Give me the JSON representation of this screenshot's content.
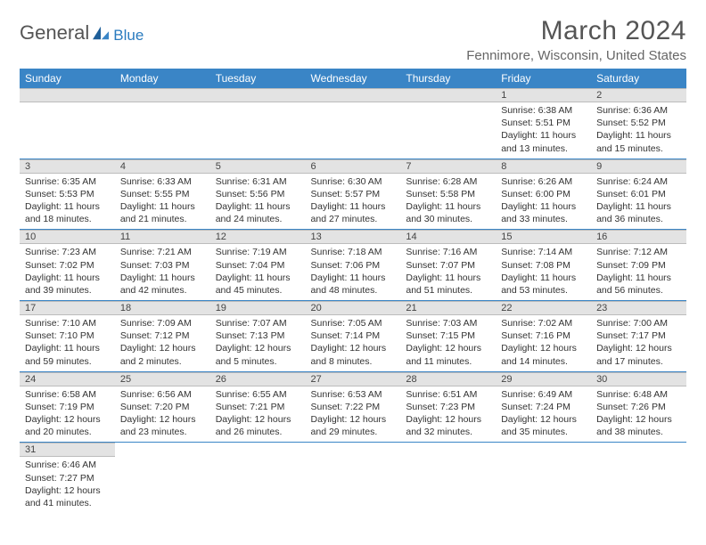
{
  "brand": {
    "part1": "General",
    "part2": "Blue"
  },
  "title": "March 2024",
  "location": "Fennimore, Wisconsin, United States",
  "colors": {
    "header_bg": "#3a85c6",
    "header_text": "#ffffff",
    "daynum_bg": "#e3e3e3",
    "daynum_border": "#bcbcbc",
    "row_divider": "#3a85c6",
    "title_color": "#555555",
    "location_color": "#666666",
    "body_text": "#333333",
    "logo_blue": "#2a7bbf"
  },
  "weekdays": [
    "Sunday",
    "Monday",
    "Tuesday",
    "Wednesday",
    "Thursday",
    "Friday",
    "Saturday"
  ],
  "rows": [
    [
      null,
      null,
      null,
      null,
      null,
      {
        "n": "1",
        "sunrise": "6:38 AM",
        "sunset": "5:51 PM",
        "dl1": "11 hours",
        "dl2": "and 13 minutes."
      },
      {
        "n": "2",
        "sunrise": "6:36 AM",
        "sunset": "5:52 PM",
        "dl1": "11 hours",
        "dl2": "and 15 minutes."
      }
    ],
    [
      {
        "n": "3",
        "sunrise": "6:35 AM",
        "sunset": "5:53 PM",
        "dl1": "11 hours",
        "dl2": "and 18 minutes."
      },
      {
        "n": "4",
        "sunrise": "6:33 AM",
        "sunset": "5:55 PM",
        "dl1": "11 hours",
        "dl2": "and 21 minutes."
      },
      {
        "n": "5",
        "sunrise": "6:31 AM",
        "sunset": "5:56 PM",
        "dl1": "11 hours",
        "dl2": "and 24 minutes."
      },
      {
        "n": "6",
        "sunrise": "6:30 AM",
        "sunset": "5:57 PM",
        "dl1": "11 hours",
        "dl2": "and 27 minutes."
      },
      {
        "n": "7",
        "sunrise": "6:28 AM",
        "sunset": "5:58 PM",
        "dl1": "11 hours",
        "dl2": "and 30 minutes."
      },
      {
        "n": "8",
        "sunrise": "6:26 AM",
        "sunset": "6:00 PM",
        "dl1": "11 hours",
        "dl2": "and 33 minutes."
      },
      {
        "n": "9",
        "sunrise": "6:24 AM",
        "sunset": "6:01 PM",
        "dl1": "11 hours",
        "dl2": "and 36 minutes."
      }
    ],
    [
      {
        "n": "10",
        "sunrise": "7:23 AM",
        "sunset": "7:02 PM",
        "dl1": "11 hours",
        "dl2": "and 39 minutes."
      },
      {
        "n": "11",
        "sunrise": "7:21 AM",
        "sunset": "7:03 PM",
        "dl1": "11 hours",
        "dl2": "and 42 minutes."
      },
      {
        "n": "12",
        "sunrise": "7:19 AM",
        "sunset": "7:04 PM",
        "dl1": "11 hours",
        "dl2": "and 45 minutes."
      },
      {
        "n": "13",
        "sunrise": "7:18 AM",
        "sunset": "7:06 PM",
        "dl1": "11 hours",
        "dl2": "and 48 minutes."
      },
      {
        "n": "14",
        "sunrise": "7:16 AM",
        "sunset": "7:07 PM",
        "dl1": "11 hours",
        "dl2": "and 51 minutes."
      },
      {
        "n": "15",
        "sunrise": "7:14 AM",
        "sunset": "7:08 PM",
        "dl1": "11 hours",
        "dl2": "and 53 minutes."
      },
      {
        "n": "16",
        "sunrise": "7:12 AM",
        "sunset": "7:09 PM",
        "dl1": "11 hours",
        "dl2": "and 56 minutes."
      }
    ],
    [
      {
        "n": "17",
        "sunrise": "7:10 AM",
        "sunset": "7:10 PM",
        "dl1": "11 hours",
        "dl2": "and 59 minutes."
      },
      {
        "n": "18",
        "sunrise": "7:09 AM",
        "sunset": "7:12 PM",
        "dl1": "12 hours",
        "dl2": "and 2 minutes."
      },
      {
        "n": "19",
        "sunrise": "7:07 AM",
        "sunset": "7:13 PM",
        "dl1": "12 hours",
        "dl2": "and 5 minutes."
      },
      {
        "n": "20",
        "sunrise": "7:05 AM",
        "sunset": "7:14 PM",
        "dl1": "12 hours",
        "dl2": "and 8 minutes."
      },
      {
        "n": "21",
        "sunrise": "7:03 AM",
        "sunset": "7:15 PM",
        "dl1": "12 hours",
        "dl2": "and 11 minutes."
      },
      {
        "n": "22",
        "sunrise": "7:02 AM",
        "sunset": "7:16 PM",
        "dl1": "12 hours",
        "dl2": "and 14 minutes."
      },
      {
        "n": "23",
        "sunrise": "7:00 AM",
        "sunset": "7:17 PM",
        "dl1": "12 hours",
        "dl2": "and 17 minutes."
      }
    ],
    [
      {
        "n": "24",
        "sunrise": "6:58 AM",
        "sunset": "7:19 PM",
        "dl1": "12 hours",
        "dl2": "and 20 minutes."
      },
      {
        "n": "25",
        "sunrise": "6:56 AM",
        "sunset": "7:20 PM",
        "dl1": "12 hours",
        "dl2": "and 23 minutes."
      },
      {
        "n": "26",
        "sunrise": "6:55 AM",
        "sunset": "7:21 PM",
        "dl1": "12 hours",
        "dl2": "and 26 minutes."
      },
      {
        "n": "27",
        "sunrise": "6:53 AM",
        "sunset": "7:22 PM",
        "dl1": "12 hours",
        "dl2": "and 29 minutes."
      },
      {
        "n": "28",
        "sunrise": "6:51 AM",
        "sunset": "7:23 PM",
        "dl1": "12 hours",
        "dl2": "and 32 minutes."
      },
      {
        "n": "29",
        "sunrise": "6:49 AM",
        "sunset": "7:24 PM",
        "dl1": "12 hours",
        "dl2": "and 35 minutes."
      },
      {
        "n": "30",
        "sunrise": "6:48 AM",
        "sunset": "7:26 PM",
        "dl1": "12 hours",
        "dl2": "and 38 minutes."
      }
    ],
    [
      {
        "n": "31",
        "sunrise": "6:46 AM",
        "sunset": "7:27 PM",
        "dl1": "12 hours",
        "dl2": "and 41 minutes."
      },
      null,
      null,
      null,
      null,
      null,
      null
    ]
  ],
  "labels": {
    "sunrise": "Sunrise:",
    "sunset": "Sunset:",
    "daylight": "Daylight:"
  }
}
